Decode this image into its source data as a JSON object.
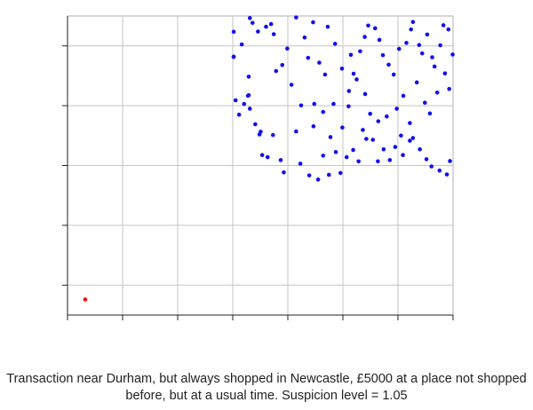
{
  "chart_data": {
    "type": "scatter",
    "title": "",
    "xlabel": "",
    "ylabel": "",
    "xlim": [
      0,
      100
    ],
    "ylim": [
      0,
      100
    ],
    "grid": true,
    "tick_labels_shown": false,
    "x_tick_values": [
      0,
      14.29,
      28.57,
      42.86,
      57.14,
      71.43,
      85.71,
      100
    ],
    "y_tick_values": [
      10,
      30,
      50,
      70,
      90
    ],
    "series": [
      {
        "color": "#1010ee",
        "points": [
          [
            43.1,
            86.4
          ],
          [
            43.1,
            94.7
          ],
          [
            45.2,
            90.5
          ],
          [
            47.3,
            99.3
          ],
          [
            48.0,
            97.7
          ],
          [
            49.4,
            94.8
          ],
          [
            51.5,
            96.4
          ],
          [
            52.8,
            97.3
          ],
          [
            53.5,
            93.9
          ],
          [
            55.7,
            83.6
          ],
          [
            43.1,
            86.3
          ],
          [
            43.6,
            71.8
          ],
          [
            44.5,
            67.0
          ],
          [
            45.8,
            70.6
          ],
          [
            46.8,
            73.3
          ],
          [
            47.0,
            79.7
          ],
          [
            47.0,
            73.5
          ],
          [
            47.3,
            69.0
          ],
          [
            48.7,
            63.8
          ],
          [
            49.8,
            60.4
          ],
          [
            50.1,
            61.3
          ],
          [
            50.5,
            53.5
          ],
          [
            51.9,
            52.8
          ],
          [
            53.3,
            60.2
          ],
          [
            55.3,
            51.8
          ],
          [
            56.1,
            47.7
          ],
          [
            59.3,
            61.4
          ],
          [
            60.4,
            50.6
          ],
          [
            62.7,
            46.7
          ],
          [
            65.0,
            45.3
          ],
          [
            66.3,
            53.3
          ],
          [
            67.8,
            46.9
          ],
          [
            69.6,
            54.5
          ],
          [
            70.8,
            47.5
          ],
          [
            72.4,
            52.8
          ],
          [
            74.1,
            55.2
          ],
          [
            75.5,
            51.4
          ],
          [
            77.5,
            58.9
          ],
          [
            79.2,
            58.6
          ],
          [
            80.5,
            51.4
          ],
          [
            82.0,
            55.4
          ],
          [
            83.6,
            51.8
          ],
          [
            85.0,
            56.2
          ],
          [
            87.0,
            53.5
          ],
          [
            88.8,
            58.3
          ],
          [
            89.6,
            59.2
          ],
          [
            91.4,
            55.4
          ],
          [
            93.1,
            52.1
          ],
          [
            94.4,
            49.7
          ],
          [
            96.5,
            48.3
          ],
          [
            98.4,
            47.0
          ],
          [
            99.2,
            51.5
          ],
          [
            58.1,
            77.0
          ],
          [
            60.6,
            70.1
          ],
          [
            63.8,
            63.1
          ],
          [
            66.3,
            67.9
          ],
          [
            66.8,
            80.4
          ],
          [
            69.0,
            70.6
          ],
          [
            71.3,
            62.7
          ],
          [
            73.0,
            74.9
          ],
          [
            74.2,
            80.7
          ],
          [
            75.9,
            88.2
          ],
          [
            77.1,
            93.0
          ],
          [
            78.0,
            96.8
          ],
          [
            79.8,
            95.9
          ],
          [
            80.9,
            92.0
          ],
          [
            81.8,
            86.9
          ],
          [
            83.3,
            83.7
          ],
          [
            84.6,
            80.4
          ],
          [
            86.0,
            89.0
          ],
          [
            87.9,
            91.0
          ],
          [
            89.1,
            95.5
          ],
          [
            89.6,
            98.0
          ],
          [
            91.2,
            90.3
          ],
          [
            92.0,
            87.5
          ],
          [
            93.3,
            93.8
          ],
          [
            94.6,
            86.2
          ],
          [
            95.2,
            83.1
          ],
          [
            96.7,
            90.2
          ],
          [
            97.5,
            96.9
          ],
          [
            98.8,
            95.5
          ],
          [
            99.9,
            87.1
          ],
          [
            54.1,
            81.6
          ],
          [
            57.0,
            89.1
          ],
          [
            59.3,
            99.5
          ],
          [
            61.5,
            92.8
          ],
          [
            63.7,
            97.9
          ],
          [
            65.3,
            84.4
          ],
          [
            67.5,
            96.4
          ],
          [
            69.4,
            90.7
          ],
          [
            71.2,
            82.4
          ],
          [
            72.9,
            69.8
          ],
          [
            75.0,
            78.8
          ],
          [
            77.2,
            73.9
          ],
          [
            78.5,
            67.3
          ],
          [
            80.6,
            64.8
          ],
          [
            82.8,
            66.4
          ],
          [
            85.4,
            69.0
          ],
          [
            87.1,
            73.3
          ],
          [
            88.8,
            64.2
          ],
          [
            90.6,
            77.8
          ],
          [
            92.7,
            71.0
          ],
          [
            94.0,
            67.4
          ],
          [
            95.9,
            74.4
          ],
          [
            97.9,
            80.8
          ],
          [
            99.0,
            75.6
          ],
          [
            86.5,
            60.0
          ],
          [
            62.4,
            86.0
          ],
          [
            64.0,
            70.6
          ],
          [
            68.2,
            59.5
          ],
          [
            73.5,
            87.0
          ],
          [
            76.6,
            61.9
          ]
        ]
      },
      {
        "color": "#ee1111",
        "points": [
          [
            4.6,
            5.2
          ]
        ]
      }
    ]
  },
  "caption": {
    "line1": "Transaction near Durham, but always shopped in Newcastle, £5000 at a place not shopped",
    "line2": "before, but at a usual time. Suspicion level = 1.05"
  }
}
